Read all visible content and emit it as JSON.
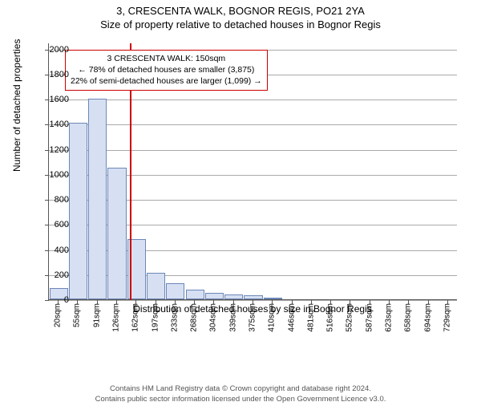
{
  "title": {
    "line1": "3, CRESCENTA WALK, BOGNOR REGIS, PO21 2YA",
    "line2": "Size of property relative to detached houses in Bognor Regis"
  },
  "chart": {
    "type": "histogram",
    "ylabel": "Number of detached properties",
    "xlabel": "Distribution of detached houses by size in Bognor Regis",
    "ylim": [
      0,
      2000
    ],
    "ytick_step": 200,
    "yticks": [
      0,
      200,
      400,
      600,
      800,
      1000,
      1200,
      1400,
      1600,
      1800,
      2000
    ],
    "ymax_plot": 2050,
    "categories": [
      "20sqm",
      "55sqm",
      "91sqm",
      "126sqm",
      "162sqm",
      "197sqm",
      "233sqm",
      "268sqm",
      "304sqm",
      "339sqm",
      "375sqm",
      "410sqm",
      "446sqm",
      "481sqm",
      "516sqm",
      "552sqm",
      "587sqm",
      "623sqm",
      "658sqm",
      "694sqm",
      "729sqm"
    ],
    "values": [
      90,
      1410,
      1600,
      1050,
      480,
      210,
      130,
      80,
      50,
      40,
      30,
      15,
      0,
      0,
      0,
      0,
      0,
      0,
      0,
      0,
      0
    ],
    "bar_fill": "#d6e0f2",
    "bar_stroke": "#6d87b8",
    "background_color": "#ffffff",
    "grid_color": "#aaaaaa",
    "axis_color": "#555555",
    "label_fontsize": 12,
    "tick_fontsize": 11,
    "bar_gap_ratio": 0.05
  },
  "annotation": {
    "line1": "3 CRESCENTA WALK: 150sqm",
    "line2": "← 78% of detached houses are smaller (3,875)",
    "line3": "22% of semi-detached houses are larger (1,099) →",
    "border_color": "#cc0000",
    "background": "#ffffff",
    "marker_color": "#cc0000",
    "marker_category_index": 3.67
  },
  "footer": {
    "line1": "Contains HM Land Registry data © Crown copyright and database right 2024.",
    "line2": "Contains public sector information licensed under the Open Government Licence v3.0."
  }
}
